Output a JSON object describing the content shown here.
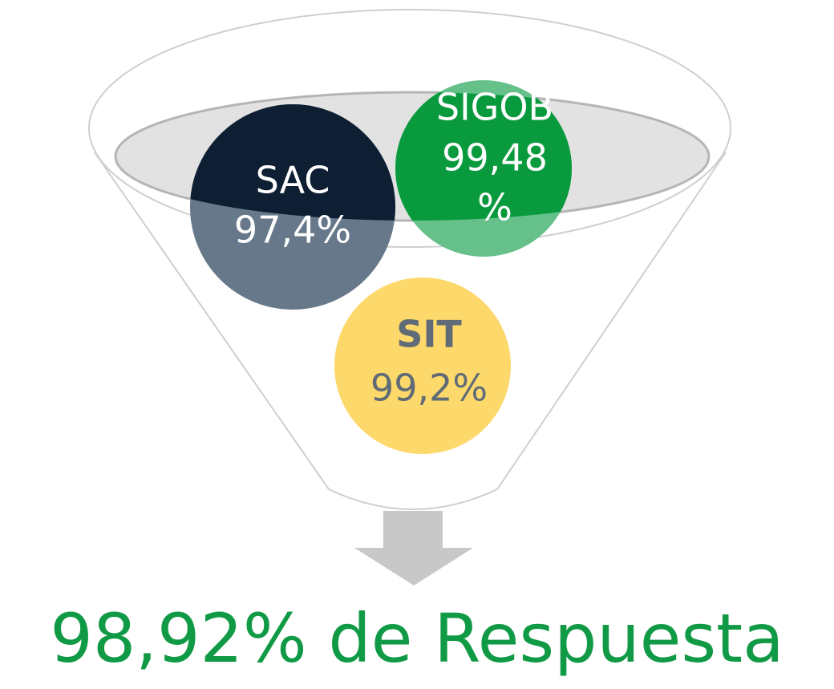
{
  "nodes": [
    {
      "label": "SAC",
      "value": "97,4%"
    },
    {
      "label": "SIGOB",
      "value_lines": [
        "99,48",
        "%"
      ]
    },
    {
      "label": "SIT",
      "value": "99,2%"
    }
  ],
  "result": "98,92% de Respuesta"
}
